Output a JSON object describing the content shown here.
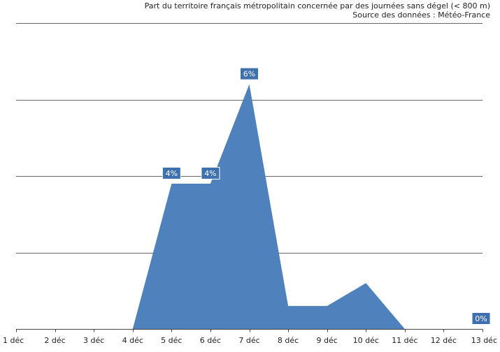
{
  "header": {
    "title": "Part du territoire français métropolitain concernée par des journées sans dégel (< 800 m)",
    "source": "Source des données : Météo-France"
  },
  "chart_data": {
    "type": "area",
    "title": "Part du territoire français métropolitain concernée par des journées sans dégel (< 800 m)",
    "subtitle": "Source des données : Météo-France",
    "xlabel": "",
    "ylabel": "",
    "categories": [
      "1 déc",
      "2 déc",
      "3 déc",
      "4 déc",
      "5 déc",
      "6 déc",
      "7 déc",
      "8 déc",
      "9 déc",
      "10 déc",
      "11 déc",
      "12 déc",
      "13 déc"
    ],
    "values": [
      0,
      0,
      0,
      0,
      3.8,
      3.8,
      6.4,
      0.6,
      0.6,
      1.2,
      0,
      0,
      0
    ],
    "data_labels": [
      {
        "index": 4,
        "text": "4%"
      },
      {
        "index": 5,
        "text": "4%"
      },
      {
        "index": 6,
        "text": "6%"
      },
      {
        "index": 12,
        "text": "0%"
      }
    ],
    "ylim": [
      0,
      8
    ],
    "gridlines": [
      0,
      2,
      4,
      6,
      8
    ],
    "grid": true,
    "legend": "none",
    "fill_color": "#4f81bd"
  }
}
